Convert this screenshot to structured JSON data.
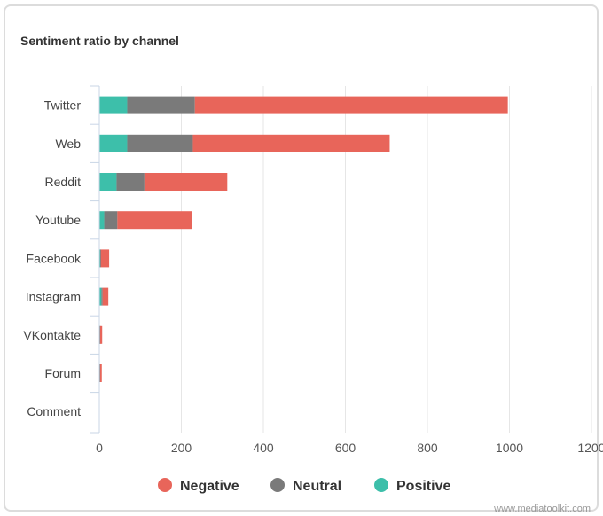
{
  "chart_data": {
    "type": "bar",
    "orientation": "horizontal",
    "stacked": true,
    "title": "Sentiment ratio by channel",
    "categories": [
      "Twitter",
      "Web",
      "Reddit",
      "Youtube",
      "Facebook",
      "Instagram",
      "VKontakte",
      "Forum",
      "Comment"
    ],
    "series": [
      {
        "name": "Positive",
        "color": "#3dbfaa",
        "values": [
          68,
          68,
          42,
          12,
          2,
          5,
          1,
          1,
          0
        ]
      },
      {
        "name": "Neutral",
        "color": "#7a7a7a",
        "values": [
          165,
          160,
          68,
          32,
          2,
          3,
          1,
          1,
          0
        ]
      },
      {
        "name": "Negative",
        "color": "#e8655a",
        "values": [
          763,
          480,
          202,
          182,
          20,
          14,
          5,
          4,
          0
        ]
      }
    ],
    "legend_order": [
      "Negative",
      "Neutral",
      "Positive"
    ],
    "xlim": [
      0,
      1200
    ],
    "xticks": [
      0,
      200,
      400,
      600,
      800,
      1000,
      1200
    ],
    "grid": true,
    "legend_position": "bottom"
  },
  "credit": "www.mediatoolkit.com"
}
